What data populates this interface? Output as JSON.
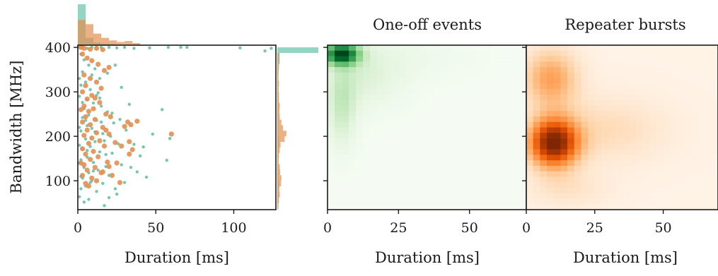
{
  "chart_data": [
    {
      "type": "scatter",
      "xlabel": "Duration [ms]",
      "ylabel": "Bandwidth [MHz]",
      "xlim": [
        0,
        127
      ],
      "ylim": [
        35,
        405
      ],
      "xticks": [
        "0",
        "50",
        "100"
      ],
      "yticks": [
        "100",
        "200",
        "300",
        "400"
      ],
      "colors": {
        "one_off": "#66c2a5",
        "repeater": "#e38f52"
      },
      "marginal_x": true,
      "marginal_y": true,
      "series": [
        {
          "key": "one_off",
          "points": [
            [
              1,
              400
            ],
            [
              3,
              400
            ],
            [
              6,
              398
            ],
            [
              9,
              400
            ],
            [
              12,
              399
            ],
            [
              15,
              400
            ],
            [
              20,
              400
            ],
            [
              25,
              399
            ],
            [
              30,
              400
            ],
            [
              36,
              398
            ],
            [
              46,
              399
            ],
            [
              58,
              400
            ],
            [
              66,
              400
            ],
            [
              70,
              400
            ],
            [
              104,
              399
            ],
            [
              120,
              392
            ],
            [
              124,
              398
            ],
            [
              2,
              385
            ],
            [
              4,
              372
            ],
            [
              7,
              360
            ],
            [
              11,
              352
            ],
            [
              3,
              345
            ],
            [
              9,
              338
            ],
            [
              14,
              330
            ],
            [
              5,
              322
            ],
            [
              2,
              315
            ],
            [
              8,
              305
            ],
            [
              13,
              298
            ],
            [
              1,
              290
            ],
            [
              6,
              282
            ],
            [
              10,
              275
            ],
            [
              15,
              268
            ],
            [
              4,
              262
            ],
            [
              19,
              255
            ],
            [
              7,
              248
            ],
            [
              3,
              242
            ],
            [
              12,
              236
            ],
            [
              23,
              230
            ],
            [
              6,
              224
            ],
            [
              9,
              218
            ],
            [
              2,
              212
            ],
            [
              16,
              206
            ],
            [
              21,
              200
            ],
            [
              5,
              194
            ],
            [
              11,
              188
            ],
            [
              26,
              183
            ],
            [
              8,
              177
            ],
            [
              3,
              171
            ],
            [
              14,
              165
            ],
            [
              18,
              159
            ],
            [
              6,
              153
            ],
            [
              2,
              147
            ],
            [
              10,
              141
            ],
            [
              28,
              136
            ],
            [
              4,
              130
            ],
            [
              13,
              124
            ],
            [
              7,
              118
            ],
            [
              20,
              112
            ],
            [
              3,
              106
            ],
            [
              9,
              100
            ],
            [
              16,
              94
            ],
            [
              5,
              88
            ],
            [
              2,
              82
            ],
            [
              12,
              76
            ],
            [
              25,
              70
            ],
            [
              1,
              64
            ],
            [
              7,
              58
            ],
            [
              4,
              52
            ],
            [
              17,
              44
            ],
            [
              8,
              96
            ],
            [
              14,
              286
            ],
            [
              22,
              252
            ],
            [
              31,
              214
            ],
            [
              36,
              182
            ],
            [
              40,
              156
            ],
            [
              44,
              108
            ],
            [
              48,
              205
            ],
            [
              54,
              260
            ],
            [
              57,
              146
            ],
            [
              59,
              195
            ],
            [
              34,
              130
            ],
            [
              28,
              310
            ],
            [
              19,
              342
            ],
            [
              24,
              360
            ],
            [
              1,
              220
            ],
            [
              1,
              180
            ],
            [
              1,
              140
            ],
            [
              2,
              110
            ],
            [
              1,
              330
            ],
            [
              3,
              276
            ],
            [
              5,
              236
            ],
            [
              6,
              168
            ],
            [
              10,
              122
            ],
            [
              11,
              210
            ],
            [
              12,
              292
            ],
            [
              15,
              232
            ],
            [
              17,
              190
            ],
            [
              18,
              132
            ],
            [
              22,
              162
            ],
            [
              27,
              238
            ],
            [
              30,
              96
            ],
            [
              33,
              272
            ],
            [
              38,
              120
            ],
            [
              42,
              176
            ],
            [
              24,
              82
            ],
            [
              20,
              62
            ]
          ]
        },
        {
          "key": "repeater",
          "points": [
            [
              2,
              400
            ],
            [
              4,
              398
            ],
            [
              8,
              396
            ],
            [
              12,
              398
            ],
            [
              16,
              395
            ],
            [
              3,
              385
            ],
            [
              6,
              376
            ],
            [
              9,
              370
            ],
            [
              13,
              362
            ],
            [
              17,
              348
            ],
            [
              20,
              355
            ],
            [
              4,
              338
            ],
            [
              8,
              330
            ],
            [
              12,
              322
            ],
            [
              5,
              314
            ],
            [
              15,
              308
            ],
            [
              3,
              300
            ],
            [
              9,
              292
            ],
            [
              6,
              284
            ],
            [
              14,
              276
            ],
            [
              4,
              268
            ],
            [
              10,
              262
            ],
            [
              7,
              256
            ],
            [
              18,
              250
            ],
            [
              5,
              244
            ],
            [
              11,
              238
            ],
            [
              3,
              232
            ],
            [
              8,
              226
            ],
            [
              16,
              220
            ],
            [
              6,
              214
            ],
            [
              12,
              208
            ],
            [
              4,
              202
            ],
            [
              20,
              205
            ],
            [
              9,
              196
            ],
            [
              14,
              190
            ],
            [
              7,
              184
            ],
            [
              17,
              178
            ],
            [
              3,
              172
            ],
            [
              10,
              166
            ],
            [
              5,
              160
            ],
            [
              13,
              154
            ],
            [
              8,
              148
            ],
            [
              19,
              142
            ],
            [
              4,
              136
            ],
            [
              11,
              130
            ],
            [
              6,
              124
            ],
            [
              15,
              118
            ],
            [
              3,
              112
            ],
            [
              9,
              106
            ],
            [
              12,
              100
            ],
            [
              5,
              94
            ],
            [
              7,
              88
            ],
            [
              16,
              120
            ],
            [
              20,
              132
            ],
            [
              25,
              140
            ],
            [
              22,
              112
            ],
            [
              30,
              222
            ],
            [
              32,
              232
            ],
            [
              34,
              226
            ],
            [
              38,
              234
            ],
            [
              28,
              178
            ],
            [
              33,
              188
            ],
            [
              35,
              170
            ],
            [
              60,
              205
            ],
            [
              33,
              160
            ],
            [
              27,
              96
            ],
            [
              18,
              214
            ],
            [
              21,
              244
            ],
            [
              24,
              186
            ],
            [
              11,
              286
            ],
            [
              2,
              140
            ],
            [
              2,
              260
            ]
          ]
        }
      ],
      "marginal_x_bins": {
        "range": [
          0,
          40
        ],
        "one_off": [
          78,
          14,
          5,
          3,
          2,
          1,
          1,
          1
        ],
        "repeater": [
          48,
          40,
          22,
          14,
          9,
          6,
          8,
          4
        ]
      },
      "marginal_y_bins": {
        "range": [
          0,
          400
        ],
        "one_off": [
          1,
          2,
          2,
          3,
          3,
          3,
          3,
          4,
          3,
          3,
          3,
          3,
          3,
          3,
          4,
          4,
          3,
          3,
          3,
          3,
          3,
          3,
          3,
          3,
          3,
          3,
          3,
          3,
          4,
          6,
          6,
          100
        ],
        "repeater": [
          0,
          0,
          0,
          1,
          4,
          6,
          5,
          9,
          10,
          7,
          6,
          3,
          4,
          6,
          8,
          18,
          22,
          14,
          10,
          6,
          5,
          6,
          4,
          4,
          3,
          4,
          2,
          3,
          3,
          4,
          4,
          0
        ]
      }
    },
    {
      "type": "heatmap",
      "title": "One-off events",
      "xlabel": "Duration [ms]",
      "xlim": [
        0,
        70
      ],
      "ylim": [
        35,
        405
      ],
      "xticks": [
        "0",
        "25",
        "50"
      ],
      "colormap": "Greens",
      "peak": {
        "duration": 5,
        "bandwidth": 385
      }
    },
    {
      "type": "heatmap",
      "title": "Repeater bursts",
      "xlabel": "Duration [ms]",
      "xlim": [
        0,
        70
      ],
      "ylim": [
        35,
        405
      ],
      "xticks": [
        "0",
        "25",
        "50"
      ],
      "colormap": "Oranges",
      "peak": {
        "duration": 10,
        "bandwidth": 185
      }
    }
  ]
}
